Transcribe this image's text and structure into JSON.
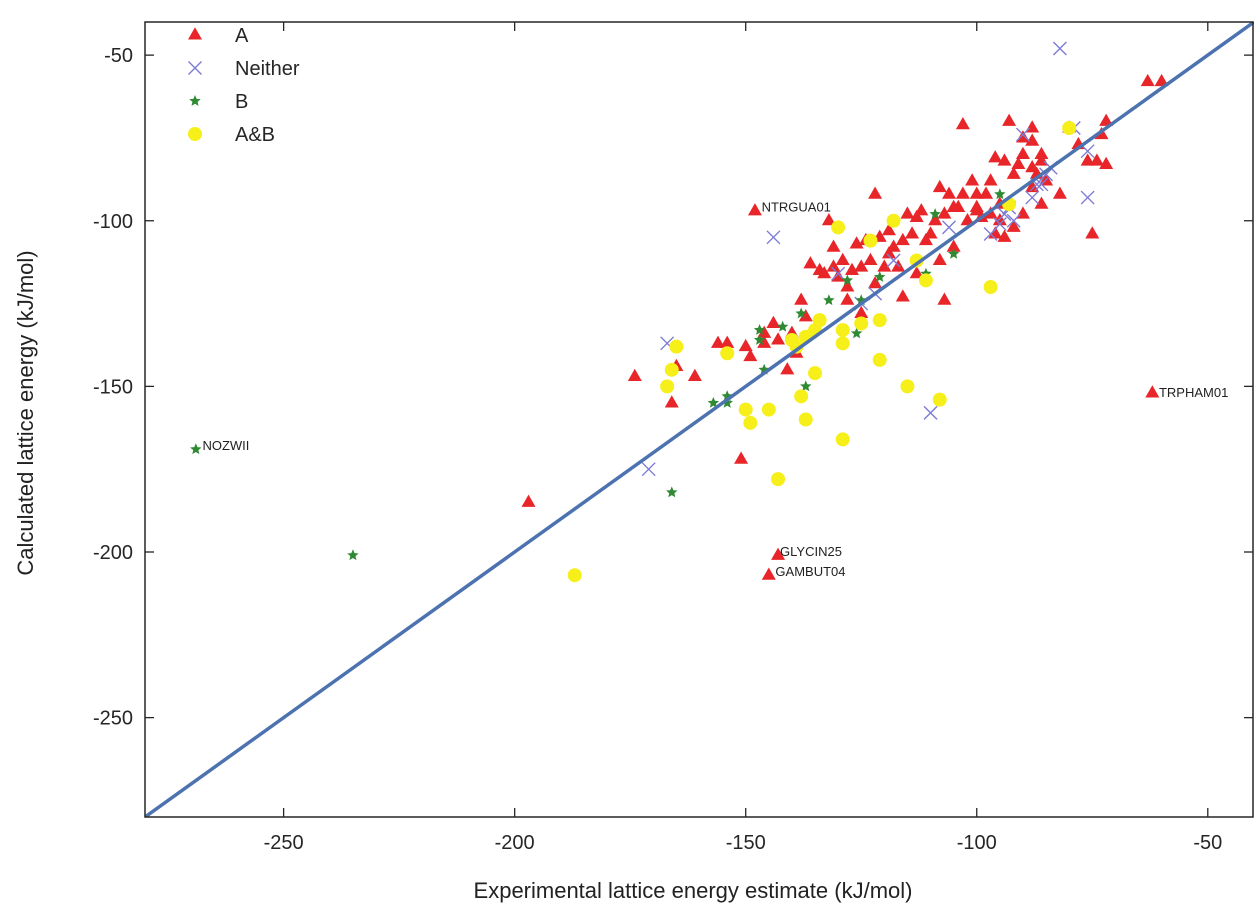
{
  "chart_data": {
    "type": "scatter",
    "title": "",
    "xlabel": "Experimental lattice energy estimate (kJ/mol)",
    "ylabel": "Calculated lattice energy (kJ/mol)",
    "xlim": [
      -280,
      -40
    ],
    "ylim": [
      -280,
      -40
    ],
    "xticks": [
      -250,
      -200,
      -150,
      -100,
      -50
    ],
    "yticks": [
      -50,
      -100,
      -150,
      -200,
      -250
    ],
    "xtick_labels": [
      "-250",
      "-200",
      "-150",
      "-100",
      "-50"
    ],
    "ytick_labels": [
      "-50",
      "-100",
      "-150",
      "-200",
      "-250"
    ],
    "grid": false,
    "legend_position": "top-left",
    "reference_line": {
      "x": [
        -280,
        -40
      ],
      "y": [
        -280,
        -40
      ],
      "color": "#4c72b0"
    },
    "series": [
      {
        "name": "A",
        "marker": "triangle",
        "color": "#e8262a",
        "points": [
          [
            -63,
            -58
          ],
          [
            -60,
            -58
          ],
          [
            -72,
            -70
          ],
          [
            -73,
            -74
          ],
          [
            -74,
            -82
          ],
          [
            -72,
            -83
          ],
          [
            -76,
            -82
          ],
          [
            -78,
            -77
          ],
          [
            -75,
            -104
          ],
          [
            -80,
            -72
          ],
          [
            -86,
            -80
          ],
          [
            -86,
            -82
          ],
          [
            -88,
            -84
          ],
          [
            -90,
            -75
          ],
          [
            -88,
            -76
          ],
          [
            -86,
            -95
          ],
          [
            -88,
            -90
          ],
          [
            -90,
            -80
          ],
          [
            -91,
            -83
          ],
          [
            -92,
            -86
          ],
          [
            -93,
            -70
          ],
          [
            -94,
            -82
          ],
          [
            -96,
            -81
          ],
          [
            -97,
            -88
          ],
          [
            -98,
            -92
          ],
          [
            -100,
            -92
          ],
          [
            -95,
            -95
          ],
          [
            -97,
            -98
          ],
          [
            -100,
            -97
          ],
          [
            -102,
            -100
          ],
          [
            -101,
            -88
          ],
          [
            -103,
            -71
          ],
          [
            -104,
            -96
          ],
          [
            -105,
            -96
          ],
          [
            -106,
            -92
          ],
          [
            -107,
            -98
          ],
          [
            -108,
            -90
          ],
          [
            -109,
            -100
          ],
          [
            -110,
            -104
          ],
          [
            -111,
            -106
          ],
          [
            -112,
            -97
          ],
          [
            -113,
            -99
          ],
          [
            -114,
            -104
          ],
          [
            -115,
            -98
          ],
          [
            -116,
            -106
          ],
          [
            -117,
            -114
          ],
          [
            -118,
            -108
          ],
          [
            -119,
            -103
          ],
          [
            -120,
            -114
          ],
          [
            -121,
            -105
          ],
          [
            -122,
            -92
          ],
          [
            -122,
            -119
          ],
          [
            -123,
            -112
          ],
          [
            -124,
            -106
          ],
          [
            -125,
            -114
          ],
          [
            -126,
            -107
          ],
          [
            -127,
            -115
          ],
          [
            -128,
            -120
          ],
          [
            -129,
            -112
          ],
          [
            -130,
            -117
          ],
          [
            -131,
            -108
          ],
          [
            -131,
            -114
          ],
          [
            -132,
            -100
          ],
          [
            -133,
            -116
          ],
          [
            -134,
            -115
          ],
          [
            -136,
            -113
          ],
          [
            -137,
            -129
          ],
          [
            -138,
            -124
          ],
          [
            -139,
            -140
          ],
          [
            -140,
            -134
          ],
          [
            -141,
            -145
          ],
          [
            -143,
            -136
          ],
          [
            -144,
            -131
          ],
          [
            -146,
            -137
          ],
          [
            -146,
            -134
          ],
          [
            -148,
            -97
          ],
          [
            -149,
            -141
          ],
          [
            -150,
            -138
          ],
          [
            -151,
            -172
          ],
          [
            -154,
            -137
          ],
          [
            -156,
            -137
          ],
          [
            -161,
            -147
          ],
          [
            -165,
            -144
          ],
          [
            -166,
            -155
          ],
          [
            -174,
            -147
          ],
          [
            -197,
            -185
          ],
          [
            -143,
            -201
          ],
          [
            -145,
            -207
          ],
          [
            -62,
            -152
          ],
          [
            -103,
            -92
          ],
          [
            -100,
            -96
          ],
          [
            -95,
            -100
          ],
          [
            -94,
            -105
          ],
          [
            -92,
            -102
          ],
          [
            -90,
            -98
          ],
          [
            -96,
            -104
          ],
          [
            -99,
            -99
          ],
          [
            -105,
            -108
          ],
          [
            -108,
            -112
          ],
          [
            -113,
            -116
          ],
          [
            -116,
            -123
          ],
          [
            -119,
            -110
          ],
          [
            -125,
            -128
          ],
          [
            -128,
            -124
          ],
          [
            -107,
            -124
          ],
          [
            -88,
            -72
          ],
          [
            -85,
            -88
          ],
          [
            -82,
            -92
          ],
          [
            -87,
            -86
          ]
        ]
      },
      {
        "name": "Neither",
        "marker": "x",
        "color": "#7b7bd6",
        "points": [
          [
            -82,
            -48
          ],
          [
            -79,
            -72
          ],
          [
            -76,
            -79
          ],
          [
            -76,
            -93
          ],
          [
            -84,
            -84
          ],
          [
            -85,
            -86
          ],
          [
            -86,
            -89
          ],
          [
            -87,
            -89
          ],
          [
            -90,
            -74
          ],
          [
            -92,
            -100
          ],
          [
            -94,
            -98
          ],
          [
            -95,
            -101
          ],
          [
            -97,
            -104
          ],
          [
            -106,
            -102
          ],
          [
            -110,
            -158
          ],
          [
            -118,
            -112
          ],
          [
            -122,
            -122
          ],
          [
            -125,
            -125
          ],
          [
            -130,
            -116
          ],
          [
            -144,
            -105
          ],
          [
            -167,
            -137
          ],
          [
            -171,
            -175
          ],
          [
            -88,
            -93
          ],
          [
            -93,
            -96
          ]
        ]
      },
      {
        "name": "B",
        "marker": "star",
        "color": "#2f8a33",
        "points": [
          [
            -269,
            -169
          ],
          [
            -235,
            -201
          ],
          [
            -166,
            -182
          ],
          [
            -157,
            -155
          ],
          [
            -154,
            -153
          ],
          [
            -154,
            -155
          ],
          [
            -147,
            -133
          ],
          [
            -147,
            -136
          ],
          [
            -146,
            -145
          ],
          [
            -142,
            -132
          ],
          [
            -138,
            -128
          ],
          [
            -137,
            -150
          ],
          [
            -132,
            -124
          ],
          [
            -128,
            -118
          ],
          [
            -126,
            -134
          ],
          [
            -125,
            -124
          ],
          [
            -111,
            -116
          ],
          [
            -109,
            -98
          ],
          [
            -105,
            -110
          ],
          [
            -95,
            -92
          ],
          [
            -121,
            -117
          ]
        ]
      },
      {
        "name": "A&B",
        "marker": "circle",
        "color": "#f6ef1a",
        "points": [
          [
            -187,
            -207
          ],
          [
            -165,
            -138
          ],
          [
            -167,
            -150
          ],
          [
            -166,
            -145
          ],
          [
            -154,
            -140
          ],
          [
            -150,
            -157
          ],
          [
            -149,
            -161
          ],
          [
            -145,
            -157
          ],
          [
            -143,
            -178
          ],
          [
            -140,
            -136
          ],
          [
            -139,
            -138
          ],
          [
            -137,
            -135
          ],
          [
            -138,
            -153
          ],
          [
            -137,
            -160
          ],
          [
            -135,
            -146
          ],
          [
            -135,
            -133
          ],
          [
            -134,
            -130
          ],
          [
            -130,
            -102
          ],
          [
            -129,
            -133
          ],
          [
            -129,
            -137
          ],
          [
            -129,
            -166
          ],
          [
            -125,
            -131
          ],
          [
            -123,
            -106
          ],
          [
            -121,
            -130
          ],
          [
            -121,
            -142
          ],
          [
            -118,
            -100
          ],
          [
            -115,
            -150
          ],
          [
            -113,
            -112
          ],
          [
            -111,
            -118
          ],
          [
            -108,
            -154
          ],
          [
            -97,
            -120
          ],
          [
            -93,
            -95
          ],
          [
            -80,
            -72
          ]
        ]
      }
    ],
    "annotations": [
      {
        "text": "NTRGUA01",
        "x": -147,
        "y": -96
      },
      {
        "text": "NOZWII",
        "x": -268,
        "y": -168
      },
      {
        "text": "TRPHAM01",
        "x": -61,
        "y": -152
      },
      {
        "text": "GLYCIN25",
        "x": -143,
        "y": -200
      },
      {
        "text": "GAMBUT04",
        "x": -144,
        "y": -206
      }
    ]
  }
}
